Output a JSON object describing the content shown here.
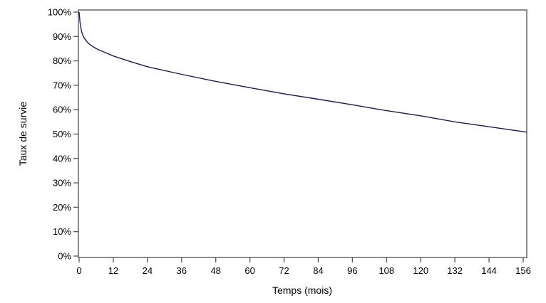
{
  "chart_data": {
    "type": "line",
    "title": "",
    "xlabel": "Temps (mois)",
    "ylabel": "Taux de survie",
    "xlim": [
      0,
      157.3
    ],
    "ylim": [
      0,
      100
    ],
    "xticks": [
      0,
      12,
      24,
      36,
      48,
      60,
      72,
      84,
      96,
      108,
      120,
      132,
      144,
      156
    ],
    "yticks": [
      0,
      10,
      20,
      30,
      40,
      50,
      60,
      70,
      80,
      90,
      100
    ],
    "ytick_labels": [
      "0%",
      "10%",
      "20%",
      "30%",
      "40%",
      "50%",
      "60%",
      "70%",
      "80%",
      "90%",
      "100%"
    ],
    "grid": false,
    "legend": "none",
    "line_color": "#1a1a5e",
    "series": [
      {
        "x": [
          0,
          0.3,
          0.7,
          1,
          1.5,
          2,
          3,
          4,
          6,
          8,
          12,
          18,
          24,
          36,
          48,
          60,
          72,
          84,
          96,
          108,
          120,
          132,
          144,
          157.3
        ],
        "y": [
          100,
          96,
          93,
          91.5,
          90,
          89,
          87.5,
          86.5,
          85,
          84,
          82,
          79.7,
          77.6,
          74.5,
          71.6,
          69,
          66.5,
          64.3,
          62,
          59.6,
          57.5,
          55,
          53,
          50.8
        ]
      }
    ]
  }
}
